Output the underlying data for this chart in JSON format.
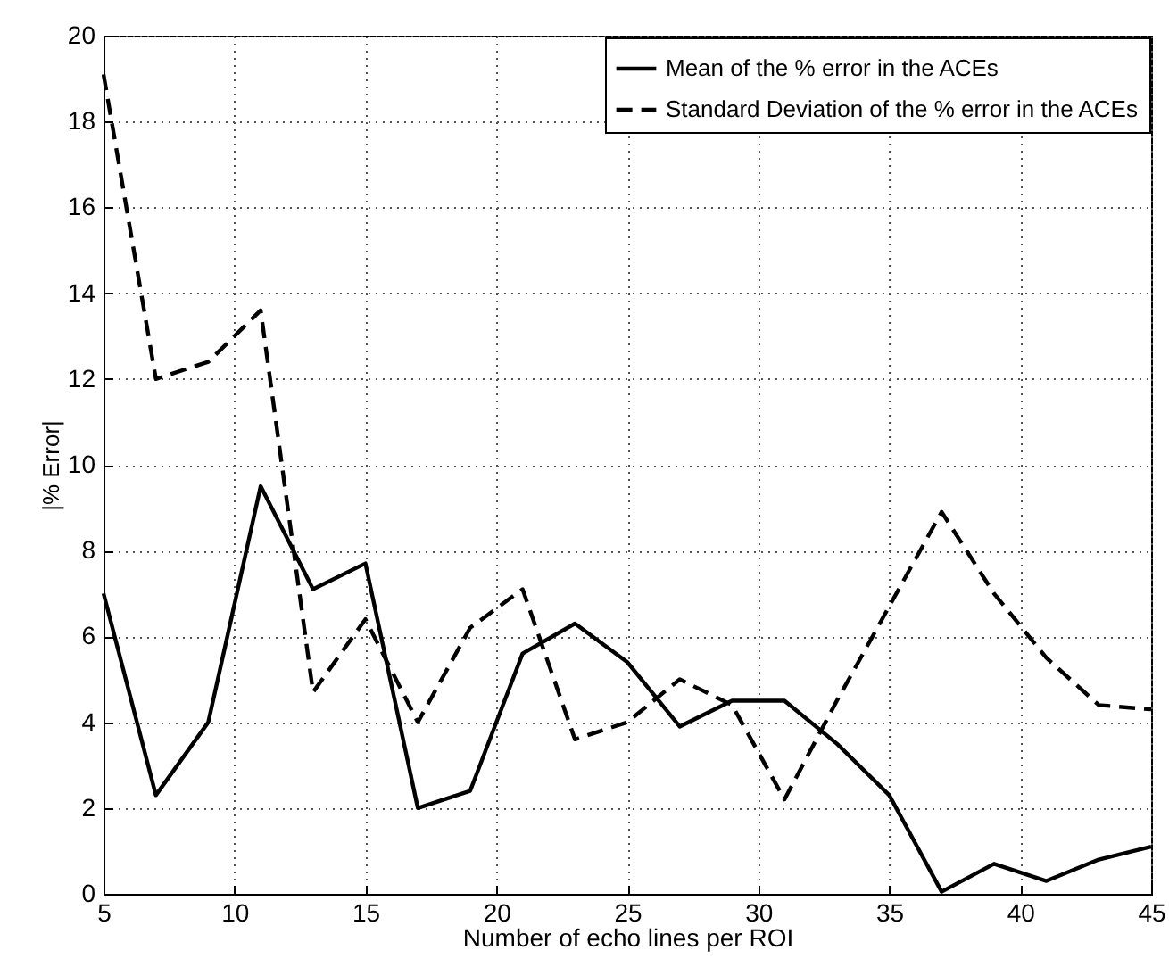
{
  "chart_data": {
    "type": "line",
    "xlabel": "Number of echo lines per ROI",
    "ylabel": "|% Error|",
    "x": [
      5,
      7,
      9,
      11,
      13,
      15,
      17,
      19,
      21,
      23,
      25,
      27,
      29,
      31,
      33,
      35,
      37,
      39,
      41,
      43,
      45
    ],
    "series": [
      {
        "name": "Mean of the % error in the ACEs",
        "color": "#000000",
        "line_style": "solid",
        "values": [
          7.0,
          2.3,
          4.0,
          9.5,
          7.1,
          7.7,
          2.0,
          2.4,
          5.6,
          6.3,
          5.4,
          3.9,
          4.5,
          4.5,
          3.5,
          2.3,
          0.05,
          0.7,
          0.3,
          0.8,
          1.1
        ]
      },
      {
        "name": "Standard Deviation of the % error in the ACEs",
        "color": "#000000",
        "line_style": "dashed",
        "values": [
          19.1,
          12.0,
          12.4,
          13.6,
          4.7,
          6.4,
          4.0,
          6.2,
          7.1,
          3.6,
          4.0,
          5.0,
          4.4,
          2.2,
          4.5,
          6.7,
          8.9,
          7.0,
          5.5,
          4.4,
          4.3
        ]
      }
    ],
    "xlim": [
      5,
      45
    ],
    "xticks": [
      5,
      10,
      15,
      20,
      25,
      30,
      35,
      40,
      45
    ],
    "ylim": [
      0,
      20
    ],
    "yticks": [
      0,
      2,
      4,
      6,
      8,
      10,
      12,
      14,
      16,
      18,
      20
    ],
    "grid": true,
    "legend": "top right",
    "marker": "none"
  }
}
